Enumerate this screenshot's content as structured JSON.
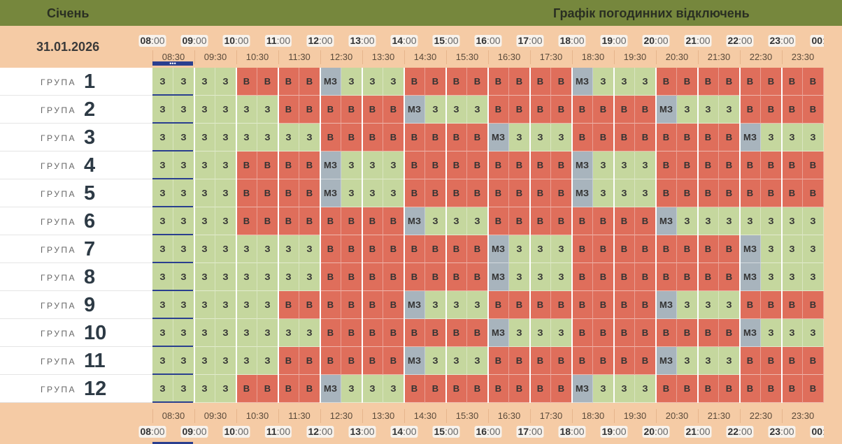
{
  "header": {
    "month": "Січень",
    "title": "Графік погодинних відключень",
    "date": "31.01.2026"
  },
  "hours": [
    "08",
    "09",
    "10",
    "11",
    "12",
    "13",
    "14",
    "15",
    "16",
    "17",
    "18",
    "19",
    "20",
    "21",
    "22",
    "23",
    "00"
  ],
  "minute_suffix": ":00",
  "half_labels": [
    "08:30",
    "09:30",
    "10:30",
    "11:30",
    "12:30",
    "13:30",
    "14:30",
    "15:30",
    "16:30",
    "17:30",
    "18:30",
    "19:30",
    "20:30",
    "21:30",
    "22:30",
    "23:30"
  ],
  "group_word": "ГРУПА",
  "now_marker": "•••",
  "colors": {
    "on": "#c5d79e",
    "off": "#df6e5b",
    "maybe": "#a8b4bd"
  },
  "legend_codes": {
    "on": "З",
    "off": "В",
    "maybe": "МЗ"
  },
  "groups": [
    {
      "number": "1",
      "slots": [
        "З",
        "З",
        "З",
        "З",
        "В",
        "В",
        "В",
        "В",
        "МЗ",
        "З",
        "З",
        "З",
        "В",
        "В",
        "В",
        "В",
        "В",
        "В",
        "В",
        "В",
        "МЗ",
        "З",
        "З",
        "З",
        "В",
        "В",
        "В",
        "В",
        "В",
        "В",
        "В",
        "В"
      ]
    },
    {
      "number": "2",
      "slots": [
        "З",
        "З",
        "З",
        "З",
        "З",
        "З",
        "В",
        "В",
        "В",
        "В",
        "В",
        "В",
        "МЗ",
        "З",
        "З",
        "З",
        "В",
        "В",
        "В",
        "В",
        "В",
        "В",
        "В",
        "В",
        "МЗ",
        "З",
        "З",
        "З",
        "В",
        "В",
        "В",
        "В"
      ]
    },
    {
      "number": "3",
      "slots": [
        "З",
        "З",
        "З",
        "З",
        "З",
        "З",
        "З",
        "З",
        "В",
        "В",
        "В",
        "В",
        "В",
        "В",
        "В",
        "В",
        "МЗ",
        "З",
        "З",
        "З",
        "В",
        "В",
        "В",
        "В",
        "В",
        "В",
        "В",
        "В",
        "МЗ",
        "З",
        "З",
        "З"
      ]
    },
    {
      "number": "4",
      "slots": [
        "З",
        "З",
        "З",
        "З",
        "В",
        "В",
        "В",
        "В",
        "МЗ",
        "З",
        "З",
        "З",
        "В",
        "В",
        "В",
        "В",
        "В",
        "В",
        "В",
        "В",
        "МЗ",
        "З",
        "З",
        "З",
        "В",
        "В",
        "В",
        "В",
        "В",
        "В",
        "В",
        "В"
      ]
    },
    {
      "number": "5",
      "slots": [
        "З",
        "З",
        "З",
        "З",
        "В",
        "В",
        "В",
        "В",
        "МЗ",
        "З",
        "З",
        "З",
        "В",
        "В",
        "В",
        "В",
        "В",
        "В",
        "В",
        "В",
        "МЗ",
        "З",
        "З",
        "З",
        "В",
        "В",
        "В",
        "В",
        "В",
        "В",
        "В",
        "В"
      ]
    },
    {
      "number": "6",
      "slots": [
        "З",
        "З",
        "З",
        "З",
        "В",
        "В",
        "В",
        "В",
        "В",
        "В",
        "В",
        "В",
        "МЗ",
        "З",
        "З",
        "З",
        "В",
        "В",
        "В",
        "В",
        "В",
        "В",
        "В",
        "В",
        "МЗ",
        "З",
        "З",
        "З",
        "З",
        "З",
        "З",
        "З"
      ]
    },
    {
      "number": "7",
      "slots": [
        "З",
        "З",
        "З",
        "З",
        "З",
        "З",
        "З",
        "З",
        "В",
        "В",
        "В",
        "В",
        "В",
        "В",
        "В",
        "В",
        "МЗ",
        "З",
        "З",
        "З",
        "В",
        "В",
        "В",
        "В",
        "В",
        "В",
        "В",
        "В",
        "МЗ",
        "З",
        "З",
        "З"
      ]
    },
    {
      "number": "8",
      "slots": [
        "З",
        "З",
        "З",
        "З",
        "З",
        "З",
        "З",
        "З",
        "В",
        "В",
        "В",
        "В",
        "В",
        "В",
        "В",
        "В",
        "МЗ",
        "З",
        "З",
        "З",
        "В",
        "В",
        "В",
        "В",
        "В",
        "В",
        "В",
        "В",
        "МЗ",
        "З",
        "З",
        "З"
      ]
    },
    {
      "number": "9",
      "slots": [
        "З",
        "З",
        "З",
        "З",
        "З",
        "З",
        "В",
        "В",
        "В",
        "В",
        "В",
        "В",
        "МЗ",
        "З",
        "З",
        "З",
        "В",
        "В",
        "В",
        "В",
        "В",
        "В",
        "В",
        "В",
        "МЗ",
        "З",
        "З",
        "З",
        "В",
        "В",
        "В",
        "В"
      ]
    },
    {
      "number": "10",
      "slots": [
        "З",
        "З",
        "З",
        "З",
        "З",
        "З",
        "З",
        "З",
        "В",
        "В",
        "В",
        "В",
        "В",
        "В",
        "В",
        "В",
        "МЗ",
        "З",
        "З",
        "З",
        "В",
        "В",
        "В",
        "В",
        "В",
        "В",
        "В",
        "В",
        "МЗ",
        "З",
        "З",
        "З"
      ]
    },
    {
      "number": "11",
      "slots": [
        "З",
        "З",
        "З",
        "З",
        "З",
        "З",
        "В",
        "В",
        "В",
        "В",
        "В",
        "В",
        "МЗ",
        "З",
        "З",
        "З",
        "В",
        "В",
        "В",
        "В",
        "В",
        "В",
        "В",
        "В",
        "МЗ",
        "З",
        "З",
        "З",
        "В",
        "В",
        "В",
        "В"
      ]
    },
    {
      "number": "12",
      "slots": [
        "З",
        "З",
        "З",
        "З",
        "В",
        "В",
        "В",
        "В",
        "МЗ",
        "З",
        "З",
        "З",
        "В",
        "В",
        "В",
        "В",
        "В",
        "В",
        "В",
        "В",
        "МЗ",
        "З",
        "З",
        "З",
        "В",
        "В",
        "В",
        "В",
        "В",
        "В",
        "В",
        "В"
      ]
    }
  ]
}
